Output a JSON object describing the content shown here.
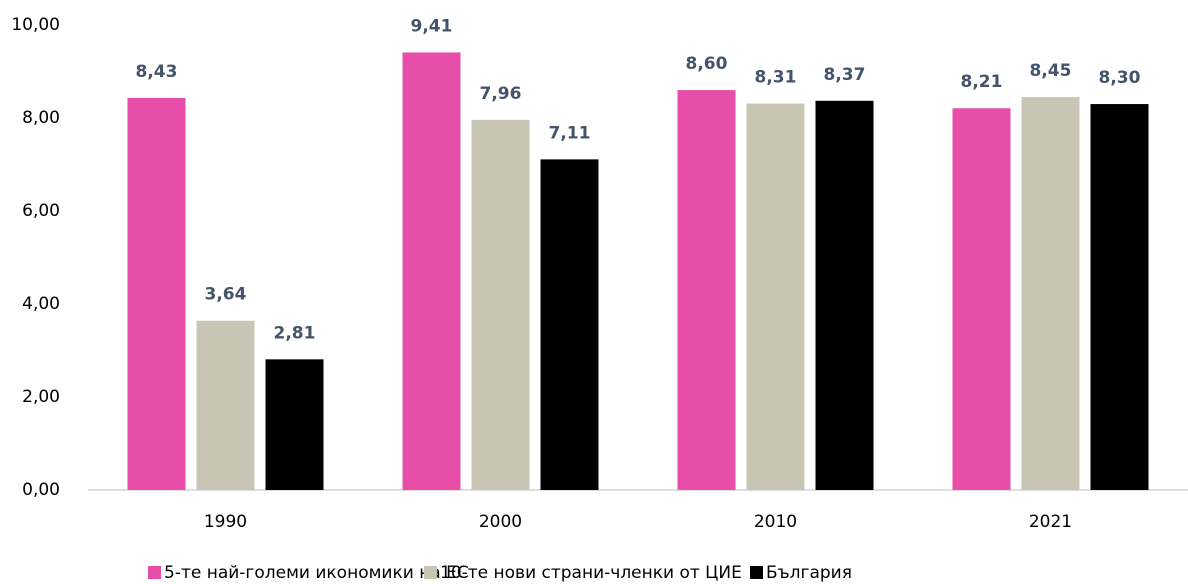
{
  "chart_data": {
    "type": "bar",
    "categories": [
      "1990",
      "2000",
      "2010",
      "2021"
    ],
    "series": [
      {
        "name": "5-те най-големи икономики на ЕС",
        "color": "#e64ea9",
        "values": [
          8.43,
          9.41,
          8.6,
          8.21
        ],
        "value_labels": [
          "8,43",
          "9,41",
          "8,60",
          "8,21"
        ]
      },
      {
        "name": "10-те нови страни-членки от ЦИЕ",
        "color": "#c9c5b5",
        "values": [
          3.64,
          7.96,
          8.31,
          8.45
        ],
        "value_labels": [
          "3,64",
          "7,96",
          "8,31",
          "8,45"
        ]
      },
      {
        "name": "България",
        "color": "#000000",
        "values": [
          2.81,
          7.11,
          8.37,
          8.3
        ],
        "value_labels": [
          "2,81",
          "7,11",
          "8,37",
          "8,30"
        ]
      }
    ],
    "ylim": [
      0,
      10
    ],
    "yticks": [
      {
        "value": 0,
        "label": "0,00"
      },
      {
        "value": 2,
        "label": "2,00"
      },
      {
        "value": 4,
        "label": "4,00"
      },
      {
        "value": 6,
        "label": "6,00"
      },
      {
        "value": 8,
        "label": "8,00"
      },
      {
        "value": 10,
        "label": "10,00"
      }
    ],
    "grid": false,
    "legend": "bottom"
  }
}
